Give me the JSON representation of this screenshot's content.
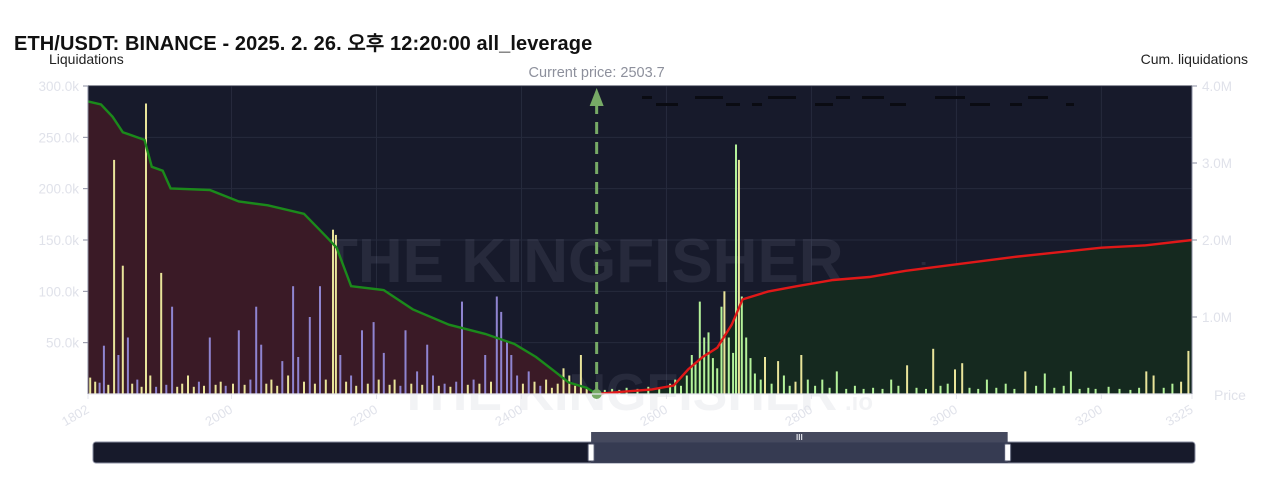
{
  "page": {
    "title": "ETH/USDT: BINANCE - 2025. 2. 26. 오후 12:20:00 all_leverage"
  },
  "watermark": {
    "brand": "THE KINGFISHER",
    "suffix": ".io"
  },
  "chart_data": {
    "type": "bar",
    "ylabel_left": "Liquidations",
    "ylabel_right": "Cum. liquidations",
    "xlabel": "Price",
    "current_price_label": "Current price: 2503.7",
    "current_price": 2503.7,
    "xlim": [
      1802,
      3325
    ],
    "ylim_left": [
      0,
      300000
    ],
    "ylim_right": [
      0,
      4000000
    ],
    "x_ticks": [
      "1802",
      "2000",
      "2200",
      "2400",
      "2600",
      "2800",
      "3000",
      "3200",
      "3325"
    ],
    "x_tick_values": [
      1802,
      2000,
      2200,
      2400,
      2600,
      2800,
      3000,
      3200,
      3325
    ],
    "y_left_ticks": [
      "50.0k",
      "100.0k",
      "150.0k",
      "200.0k",
      "250.0k",
      "300.0k"
    ],
    "y_left_tick_values": [
      50000,
      100000,
      150000,
      200000,
      250000,
      300000
    ],
    "y_right_ticks": [
      "1.0M",
      "2.0M",
      "3.0M",
      "4.0M"
    ],
    "y_right_tick_values": [
      1000000,
      2000000,
      3000000,
      4000000
    ],
    "colors": {
      "background": "#171a2b",
      "grid": "#262a3d",
      "axis_text": "#d0d2dc",
      "long_cum_line": "#1b8a1b",
      "long_fill": "#3a1a26",
      "short_cum_line": "#e01818",
      "short_fill": "#15291f",
      "bar_yellow": "#e9e49a",
      "bar_purple": "#8f84d0",
      "bar_green": "#b4f29a",
      "current_price_line": "#77aa66",
      "current_price_text": "#8d909c"
    },
    "bars": [
      {
        "x": 1805,
        "y": 16000,
        "c": "yellow"
      },
      {
        "x": 1812,
        "y": 12000,
        "c": "yellow"
      },
      {
        "x": 1818,
        "y": 11000,
        "c": "purple"
      },
      {
        "x": 1824,
        "y": 47000,
        "c": "purple"
      },
      {
        "x": 1830,
        "y": 9000,
        "c": "yellow"
      },
      {
        "x": 1838,
        "y": 228000,
        "c": "yellow"
      },
      {
        "x": 1844,
        "y": 38000,
        "c": "purple"
      },
      {
        "x": 1850,
        "y": 125000,
        "c": "yellow"
      },
      {
        "x": 1857,
        "y": 55000,
        "c": "purple"
      },
      {
        "x": 1863,
        "y": 10000,
        "c": "yellow"
      },
      {
        "x": 1870,
        "y": 14000,
        "c": "purple"
      },
      {
        "x": 1876,
        "y": 7000,
        "c": "yellow"
      },
      {
        "x": 1882,
        "y": 283000,
        "c": "yellow"
      },
      {
        "x": 1888,
        "y": 18000,
        "c": "yellow"
      },
      {
        "x": 1896,
        "y": 7000,
        "c": "purple"
      },
      {
        "x": 1903,
        "y": 118000,
        "c": "yellow"
      },
      {
        "x": 1910,
        "y": 9000,
        "c": "purple"
      },
      {
        "x": 1918,
        "y": 85000,
        "c": "purple"
      },
      {
        "x": 1925,
        "y": 7000,
        "c": "yellow"
      },
      {
        "x": 1932,
        "y": 10000,
        "c": "yellow"
      },
      {
        "x": 1940,
        "y": 18000,
        "c": "yellow"
      },
      {
        "x": 1948,
        "y": 7000,
        "c": "yellow"
      },
      {
        "x": 1955,
        "y": 12000,
        "c": "purple"
      },
      {
        "x": 1962,
        "y": 8000,
        "c": "yellow"
      },
      {
        "x": 1970,
        "y": 55000,
        "c": "purple"
      },
      {
        "x": 1978,
        "y": 9000,
        "c": "yellow"
      },
      {
        "x": 1985,
        "y": 12000,
        "c": "yellow"
      },
      {
        "x": 1992,
        "y": 8000,
        "c": "purple"
      },
      {
        "x": 2002,
        "y": 10000,
        "c": "yellow"
      },
      {
        "x": 2010,
        "y": 62000,
        "c": "purple"
      },
      {
        "x": 2018,
        "y": 9000,
        "c": "yellow"
      },
      {
        "x": 2026,
        "y": 14000,
        "c": "purple"
      },
      {
        "x": 2034,
        "y": 85000,
        "c": "purple"
      },
      {
        "x": 2041,
        "y": 48000,
        "c": "purple"
      },
      {
        "x": 2048,
        "y": 10000,
        "c": "yellow"
      },
      {
        "x": 2055,
        "y": 14000,
        "c": "yellow"
      },
      {
        "x": 2063,
        "y": 8000,
        "c": "yellow"
      },
      {
        "x": 2070,
        "y": 32000,
        "c": "purple"
      },
      {
        "x": 2078,
        "y": 18000,
        "c": "yellow"
      },
      {
        "x": 2085,
        "y": 105000,
        "c": "purple"
      },
      {
        "x": 2092,
        "y": 36000,
        "c": "purple"
      },
      {
        "x": 2100,
        "y": 12000,
        "c": "yellow"
      },
      {
        "x": 2108,
        "y": 75000,
        "c": "purple"
      },
      {
        "x": 2115,
        "y": 10000,
        "c": "yellow"
      },
      {
        "x": 2122,
        "y": 105000,
        "c": "purple"
      },
      {
        "x": 2130,
        "y": 14000,
        "c": "yellow"
      },
      {
        "x": 2140,
        "y": 160000,
        "c": "yellow"
      },
      {
        "x": 2144,
        "y": 155000,
        "c": "yellow"
      },
      {
        "x": 2150,
        "y": 38000,
        "c": "purple"
      },
      {
        "x": 2158,
        "y": 12000,
        "c": "yellow"
      },
      {
        "x": 2165,
        "y": 18000,
        "c": "purple"
      },
      {
        "x": 2172,
        "y": 8000,
        "c": "yellow"
      },
      {
        "x": 2180,
        "y": 62000,
        "c": "purple"
      },
      {
        "x": 2188,
        "y": 10000,
        "c": "yellow"
      },
      {
        "x": 2196,
        "y": 70000,
        "c": "purple"
      },
      {
        "x": 2203,
        "y": 14000,
        "c": "yellow"
      },
      {
        "x": 2210,
        "y": 40000,
        "c": "purple"
      },
      {
        "x": 2218,
        "y": 9000,
        "c": "yellow"
      },
      {
        "x": 2225,
        "y": 14000,
        "c": "yellow"
      },
      {
        "x": 2233,
        "y": 8000,
        "c": "purple"
      },
      {
        "x": 2240,
        "y": 62000,
        "c": "purple"
      },
      {
        "x": 2248,
        "y": 10000,
        "c": "yellow"
      },
      {
        "x": 2256,
        "y": 22000,
        "c": "purple"
      },
      {
        "x": 2263,
        "y": 9000,
        "c": "yellow"
      },
      {
        "x": 2270,
        "y": 48000,
        "c": "purple"
      },
      {
        "x": 2278,
        "y": 18000,
        "c": "purple"
      },
      {
        "x": 2286,
        "y": 8000,
        "c": "yellow"
      },
      {
        "x": 2294,
        "y": 10000,
        "c": "purple"
      },
      {
        "x": 2302,
        "y": 7000,
        "c": "yellow"
      },
      {
        "x": 2310,
        "y": 12000,
        "c": "purple"
      },
      {
        "x": 2318,
        "y": 90000,
        "c": "purple"
      },
      {
        "x": 2326,
        "y": 9000,
        "c": "yellow"
      },
      {
        "x": 2334,
        "y": 14000,
        "c": "purple"
      },
      {
        "x": 2342,
        "y": 10000,
        "c": "yellow"
      },
      {
        "x": 2350,
        "y": 38000,
        "c": "purple"
      },
      {
        "x": 2358,
        "y": 12000,
        "c": "yellow"
      },
      {
        "x": 2366,
        "y": 95000,
        "c": "purple"
      },
      {
        "x": 2372,
        "y": 80000,
        "c": "purple"
      },
      {
        "x": 2380,
        "y": 52000,
        "c": "purple"
      },
      {
        "x": 2386,
        "y": 38000,
        "c": "purple"
      },
      {
        "x": 2394,
        "y": 18000,
        "c": "purple"
      },
      {
        "x": 2402,
        "y": 10000,
        "c": "yellow"
      },
      {
        "x": 2410,
        "y": 22000,
        "c": "purple"
      },
      {
        "x": 2418,
        "y": 12000,
        "c": "yellow"
      },
      {
        "x": 2426,
        "y": 8000,
        "c": "purple"
      },
      {
        "x": 2434,
        "y": 14000,
        "c": "yellow"
      },
      {
        "x": 2442,
        "y": 6000,
        "c": "yellow"
      },
      {
        "x": 2450,
        "y": 10000,
        "c": "yellow"
      },
      {
        "x": 2458,
        "y": 25000,
        "c": "yellow"
      },
      {
        "x": 2466,
        "y": 18000,
        "c": "yellow"
      },
      {
        "x": 2474,
        "y": 8000,
        "c": "yellow"
      },
      {
        "x": 2482,
        "y": 38000,
        "c": "yellow"
      },
      {
        "x": 2490,
        "y": 5000,
        "c": "yellow"
      },
      {
        "x": 2515,
        "y": 4000,
        "c": "green"
      },
      {
        "x": 2525,
        "y": 5000,
        "c": "green"
      },
      {
        "x": 2535,
        "y": 4000,
        "c": "green"
      },
      {
        "x": 2545,
        "y": 6000,
        "c": "green"
      },
      {
        "x": 2560,
        "y": 5000,
        "c": "green"
      },
      {
        "x": 2575,
        "y": 7000,
        "c": "green"
      },
      {
        "x": 2590,
        "y": 6000,
        "c": "green"
      },
      {
        "x": 2605,
        "y": 10000,
        "c": "green"
      },
      {
        "x": 2612,
        "y": 14000,
        "c": "green"
      },
      {
        "x": 2620,
        "y": 8000,
        "c": "green"
      },
      {
        "x": 2628,
        "y": 18000,
        "c": "green"
      },
      {
        "x": 2635,
        "y": 38000,
        "c": "green"
      },
      {
        "x": 2640,
        "y": 30000,
        "c": "green"
      },
      {
        "x": 2646,
        "y": 90000,
        "c": "green"
      },
      {
        "x": 2652,
        "y": 55000,
        "c": "green"
      },
      {
        "x": 2658,
        "y": 60000,
        "c": "green"
      },
      {
        "x": 2664,
        "y": 35000,
        "c": "green"
      },
      {
        "x": 2670,
        "y": 25000,
        "c": "green"
      },
      {
        "x": 2676,
        "y": 85000,
        "c": "green"
      },
      {
        "x": 2680,
        "y": 100000,
        "c": "yellow"
      },
      {
        "x": 2686,
        "y": 55000,
        "c": "green"
      },
      {
        "x": 2692,
        "y": 40000,
        "c": "green"
      },
      {
        "x": 2696,
        "y": 243000,
        "c": "green"
      },
      {
        "x": 2700,
        "y": 228000,
        "c": "yellow"
      },
      {
        "x": 2704,
        "y": 95000,
        "c": "green"
      },
      {
        "x": 2710,
        "y": 55000,
        "c": "green"
      },
      {
        "x": 2716,
        "y": 35000,
        "c": "green"
      },
      {
        "x": 2722,
        "y": 20000,
        "c": "green"
      },
      {
        "x": 2730,
        "y": 14000,
        "c": "green"
      },
      {
        "x": 2736,
        "y": 36000,
        "c": "yellow"
      },
      {
        "x": 2745,
        "y": 10000,
        "c": "green"
      },
      {
        "x": 2754,
        "y": 32000,
        "c": "yellow"
      },
      {
        "x": 2762,
        "y": 18000,
        "c": "green"
      },
      {
        "x": 2770,
        "y": 8000,
        "c": "green"
      },
      {
        "x": 2778,
        "y": 12000,
        "c": "yellow"
      },
      {
        "x": 2786,
        "y": 38000,
        "c": "yellow"
      },
      {
        "x": 2795,
        "y": 14000,
        "c": "green"
      },
      {
        "x": 2805,
        "y": 8000,
        "c": "green"
      },
      {
        "x": 2815,
        "y": 14000,
        "c": "green"
      },
      {
        "x": 2825,
        "y": 6000,
        "c": "green"
      },
      {
        "x": 2835,
        "y": 22000,
        "c": "green"
      },
      {
        "x": 2848,
        "y": 5000,
        "c": "green"
      },
      {
        "x": 2860,
        "y": 8000,
        "c": "green"
      },
      {
        "x": 2872,
        "y": 5000,
        "c": "green"
      },
      {
        "x": 2885,
        "y": 6000,
        "c": "green"
      },
      {
        "x": 2898,
        "y": 5000,
        "c": "green"
      },
      {
        "x": 2910,
        "y": 14000,
        "c": "green"
      },
      {
        "x": 2920,
        "y": 8000,
        "c": "green"
      },
      {
        "x": 2932,
        "y": 28000,
        "c": "yellow"
      },
      {
        "x": 2945,
        "y": 6000,
        "c": "green"
      },
      {
        "x": 2958,
        "y": 5000,
        "c": "green"
      },
      {
        "x": 2968,
        "y": 44000,
        "c": "yellow"
      },
      {
        "x": 2978,
        "y": 8000,
        "c": "green"
      },
      {
        "x": 2988,
        "y": 10000,
        "c": "green"
      },
      {
        "x": 2998,
        "y": 24000,
        "c": "yellow"
      },
      {
        "x": 3008,
        "y": 30000,
        "c": "yellow"
      },
      {
        "x": 3018,
        "y": 6000,
        "c": "green"
      },
      {
        "x": 3030,
        "y": 5000,
        "c": "green"
      },
      {
        "x": 3042,
        "y": 14000,
        "c": "green"
      },
      {
        "x": 3055,
        "y": 6000,
        "c": "green"
      },
      {
        "x": 3068,
        "y": 10000,
        "c": "green"
      },
      {
        "x": 3080,
        "y": 5000,
        "c": "green"
      },
      {
        "x": 3095,
        "y": 22000,
        "c": "yellow"
      },
      {
        "x": 3110,
        "y": 8000,
        "c": "green"
      },
      {
        "x": 3122,
        "y": 20000,
        "c": "green"
      },
      {
        "x": 3135,
        "y": 6000,
        "c": "green"
      },
      {
        "x": 3148,
        "y": 8000,
        "c": "green"
      },
      {
        "x": 3158,
        "y": 22000,
        "c": "green"
      },
      {
        "x": 3170,
        "y": 5000,
        "c": "green"
      },
      {
        "x": 3182,
        "y": 6000,
        "c": "green"
      },
      {
        "x": 3192,
        "y": 5000,
        "c": "green"
      },
      {
        "x": 3210,
        "y": 7000,
        "c": "green"
      },
      {
        "x": 3225,
        "y": 5000,
        "c": "green"
      },
      {
        "x": 3240,
        "y": 4000,
        "c": "green"
      },
      {
        "x": 3252,
        "y": 6000,
        "c": "green"
      },
      {
        "x": 3262,
        "y": 22000,
        "c": "yellow"
      },
      {
        "x": 3272,
        "y": 18000,
        "c": "yellow"
      },
      {
        "x": 3286,
        "y": 6000,
        "c": "green"
      },
      {
        "x": 3298,
        "y": 10000,
        "c": "green"
      },
      {
        "x": 3310,
        "y": 12000,
        "c": "yellow"
      },
      {
        "x": 3320,
        "y": 42000,
        "c": "yellow"
      }
    ],
    "long_cum": [
      [
        1802,
        3800000
      ],
      [
        1820,
        3760000
      ],
      [
        1836,
        3600000
      ],
      [
        1850,
        3400000
      ],
      [
        1880,
        3300000
      ],
      [
        1890,
        2950000
      ],
      [
        1905,
        2900000
      ],
      [
        1916,
        2670000
      ],
      [
        1970,
        2650000
      ],
      [
        2010,
        2500000
      ],
      [
        2050,
        2450000
      ],
      [
        2100,
        2340000
      ],
      [
        2130,
        2050000
      ],
      [
        2145,
        1900000
      ],
      [
        2165,
        1400000
      ],
      [
        2210,
        1350000
      ],
      [
        2250,
        1100000
      ],
      [
        2300,
        900000
      ],
      [
        2350,
        780000
      ],
      [
        2390,
        650000
      ],
      [
        2420,
        480000
      ],
      [
        2445,
        300000
      ],
      [
        2465,
        150000
      ],
      [
        2490,
        80000
      ],
      [
        2503.7,
        0
      ]
    ],
    "short_cum": [
      [
        2503.7,
        0
      ],
      [
        2540,
        30000
      ],
      [
        2580,
        60000
      ],
      [
        2610,
        110000
      ],
      [
        2630,
        320000
      ],
      [
        2650,
        480000
      ],
      [
        2670,
        600000
      ],
      [
        2690,
        900000
      ],
      [
        2705,
        1230000
      ],
      [
        2740,
        1330000
      ],
      [
        2780,
        1400000
      ],
      [
        2830,
        1480000
      ],
      [
        2880,
        1520000
      ],
      [
        2930,
        1600000
      ],
      [
        2980,
        1660000
      ],
      [
        3030,
        1720000
      ],
      [
        3080,
        1780000
      ],
      [
        3140,
        1840000
      ],
      [
        3200,
        1900000
      ],
      [
        3260,
        1930000
      ],
      [
        3325,
        2000000
      ]
    ]
  },
  "zoom_slider": {
    "range_start": 0.452,
    "range_end": 0.83,
    "grip_label": "III"
  }
}
